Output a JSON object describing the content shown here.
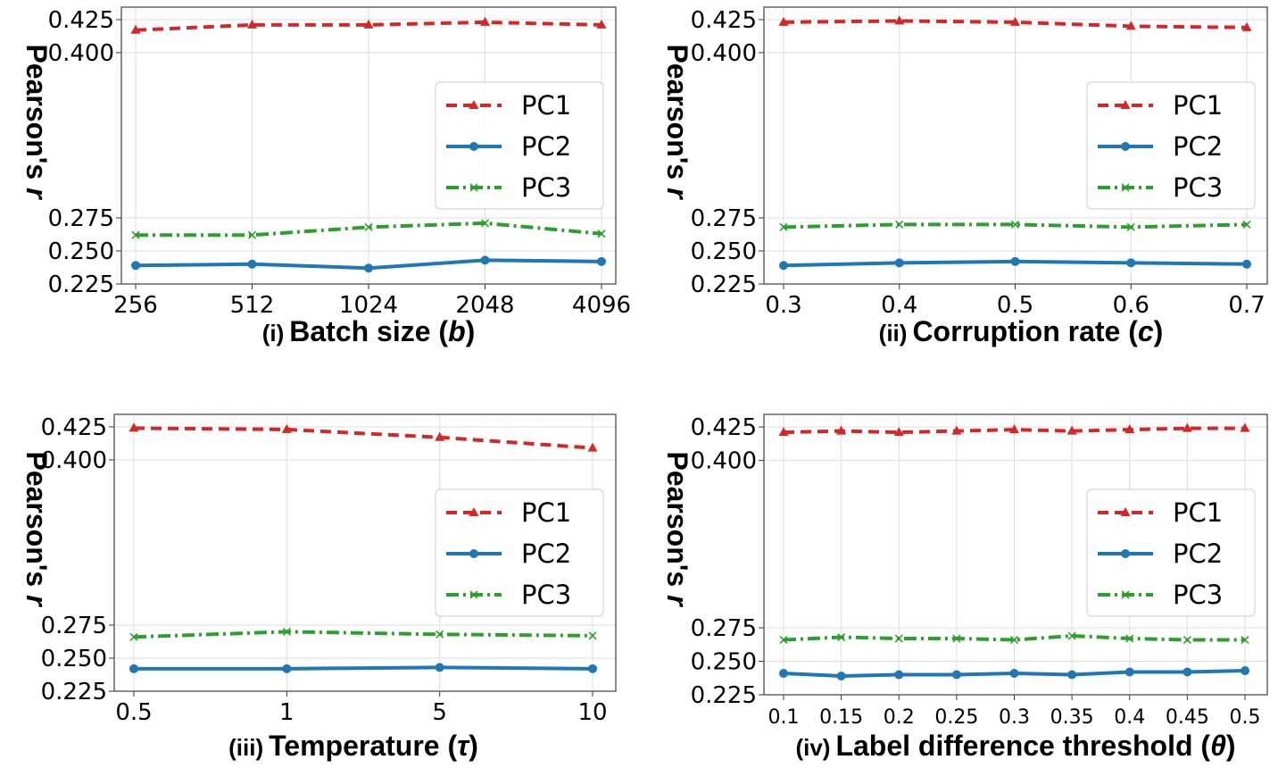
{
  "chart_data": [
    {
      "type": "line",
      "panel_label": "(i)",
      "xlabel_text": "Batch size (",
      "xlabel_symbol": "b",
      "xlabel_close": ")",
      "ylabel_text": "Pearson's ",
      "ylabel_symbol": "r",
      "x": [
        "256",
        "512",
        "1024",
        "2048",
        "4096"
      ],
      "yticks": [
        "0.225",
        "0.250",
        "0.275",
        "0.400",
        "0.425"
      ],
      "series": [
        {
          "name": "PC1",
          "color": "#d62728",
          "values": [
            0.417,
            0.421,
            0.421,
            0.423,
            0.421
          ]
        },
        {
          "name": "PC2",
          "color": "#1f77b4",
          "values": [
            0.239,
            0.24,
            0.237,
            0.243,
            0.242
          ]
        },
        {
          "name": "PC3",
          "color": "#2ca02c",
          "values": [
            0.262,
            0.262,
            0.268,
            0.271,
            0.263
          ]
        }
      ],
      "legend": "right",
      "grid": true
    },
    {
      "type": "line",
      "panel_label": "(ii)",
      "xlabel_text": "Corruption rate (",
      "xlabel_symbol": "c",
      "xlabel_close": ")",
      "ylabel_text": "Pearson's ",
      "ylabel_symbol": "r",
      "x": [
        "0.3",
        "0.4",
        "0.5",
        "0.6",
        "0.7"
      ],
      "yticks": [
        "0.225",
        "0.250",
        "0.275",
        "0.400",
        "0.425"
      ],
      "series": [
        {
          "name": "PC1",
          "color": "#d62728",
          "values": [
            0.423,
            0.424,
            0.423,
            0.42,
            0.419
          ]
        },
        {
          "name": "PC2",
          "color": "#1f77b4",
          "values": [
            0.239,
            0.241,
            0.242,
            0.241,
            0.24
          ]
        },
        {
          "name": "PC3",
          "color": "#2ca02c",
          "values": [
            0.268,
            0.27,
            0.27,
            0.268,
            0.27
          ]
        }
      ],
      "legend": "right",
      "grid": true
    },
    {
      "type": "line",
      "panel_label": "(iii)",
      "xlabel_text": "Temperature (",
      "xlabel_symbol": "τ",
      "xlabel_close": ")",
      "ylabel_text": "Pearson's ",
      "ylabel_symbol": "r",
      "x": [
        "0.5",
        "1",
        "5",
        "10"
      ],
      "yticks": [
        "0.225",
        "0.250",
        "0.275",
        "0.400",
        "0.425"
      ],
      "series": [
        {
          "name": "PC1",
          "color": "#d62728",
          "values": [
            0.424,
            0.423,
            0.417,
            0.409
          ]
        },
        {
          "name": "PC2",
          "color": "#1f77b4",
          "values": [
            0.242,
            0.242,
            0.243,
            0.242
          ]
        },
        {
          "name": "PC3",
          "color": "#2ca02c",
          "values": [
            0.266,
            0.27,
            0.268,
            0.267
          ]
        }
      ],
      "legend": "right",
      "grid": true
    },
    {
      "type": "line",
      "panel_label": "(iv)",
      "xlabel_text": "Label difference threshold (",
      "xlabel_symbol": "θ",
      "xlabel_close": ")",
      "ylabel_text": "Pearson's ",
      "ylabel_symbol": "r",
      "x": [
        "0.1",
        "0.15",
        "0.2",
        "0.25",
        "0.3",
        "0.35",
        "0.4",
        "0.45",
        "0.5"
      ],
      "yticks": [
        "0.225",
        "0.250",
        "0.275",
        "0.400",
        "0.425"
      ],
      "series": [
        {
          "name": "PC1",
          "color": "#d62728",
          "values": [
            0.421,
            0.422,
            0.421,
            0.422,
            0.423,
            0.422,
            0.423,
            0.424,
            0.424
          ]
        },
        {
          "name": "PC2",
          "color": "#1f77b4",
          "values": [
            0.241,
            0.239,
            0.24,
            0.24,
            0.241,
            0.24,
            0.242,
            0.242,
            0.243
          ]
        },
        {
          "name": "PC3",
          "color": "#2ca02c",
          "values": [
            0.266,
            0.268,
            0.267,
            0.267,
            0.266,
            0.269,
            0.267,
            0.266,
            0.266
          ]
        }
      ],
      "legend": "right",
      "grid": true
    }
  ]
}
